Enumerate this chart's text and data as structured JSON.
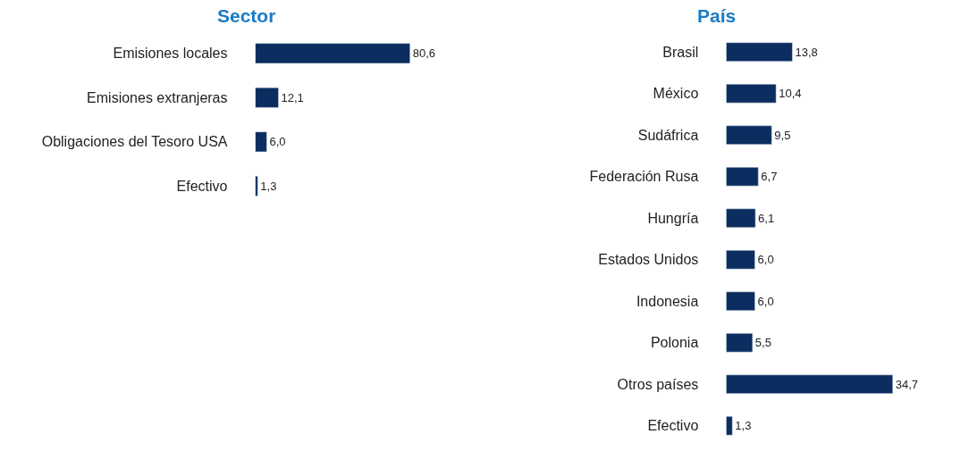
{
  "chart_data": [
    {
      "type": "bar",
      "title": "Sector",
      "orientation": "horizontal",
      "tick_labels": "y",
      "categories": [
        "Emisiones locales",
        "Emisiones extranjeras",
        "Obligaciones del Tesoro USA",
        "Efectivo"
      ],
      "values": [
        80.6,
        12.1,
        6.0,
        1.3
      ],
      "value_labels": [
        "80,6",
        "12,1",
        "6,0",
        "1,3"
      ],
      "color": "#0c2d5f"
    },
    {
      "type": "bar",
      "title": "País",
      "orientation": "horizontal",
      "tick_labels": "y",
      "categories": [
        "Brasil",
        "México",
        "Sudáfrica",
        "Federación Rusa",
        "Hungría",
        "Estados Unidos",
        "Indonesia",
        "Polonia",
        "Otros países",
        "Efectivo"
      ],
      "values": [
        13.8,
        10.4,
        9.5,
        6.7,
        6.1,
        6.0,
        6.0,
        5.5,
        34.7,
        1.3
      ],
      "value_labels": [
        "13,8",
        "10,4",
        "9,5",
        "6,7",
        "6,1",
        "6,0",
        "6,0",
        "5,5",
        "34,7",
        "1,3"
      ],
      "color": "#0c2d5f"
    }
  ]
}
